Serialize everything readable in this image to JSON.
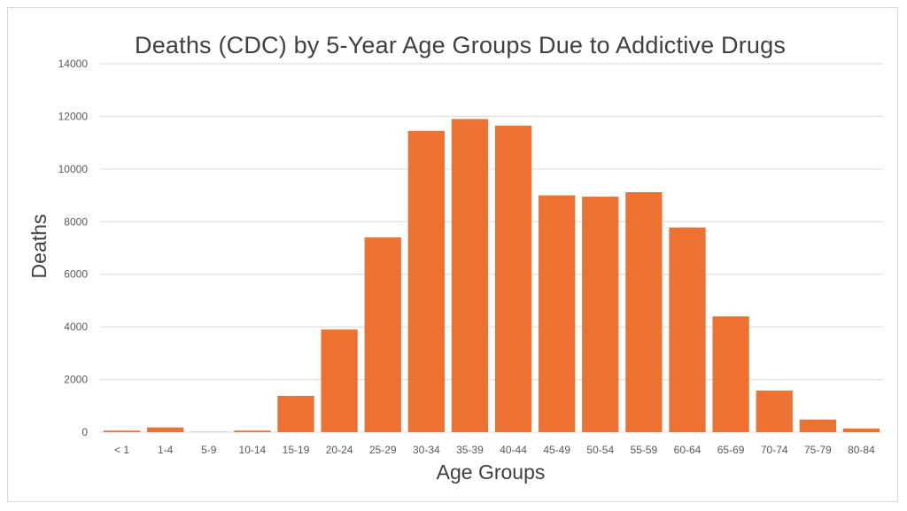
{
  "chart_data": {
    "type": "bar",
    "title": "Deaths (CDC) by 5-Year Age Groups Due to Addictive Drugs",
    "xlabel": "Age Groups",
    "ylabel": "Deaths",
    "categories": [
      "< 1",
      "1-4",
      "5-9",
      "10-14",
      "15-19",
      "20-24",
      "25-29",
      "30-34",
      "35-39",
      "40-44",
      "45-49",
      "50-54",
      "55-59",
      "60-64",
      "65-69",
      "70-74",
      "75-79",
      "80-84"
    ],
    "values": [
      60,
      180,
      10,
      60,
      1380,
      3900,
      7400,
      11450,
      11900,
      11650,
      9000,
      8950,
      9120,
      7780,
      4400,
      1580,
      480,
      140
    ],
    "ylim": [
      0,
      14000
    ],
    "yticks": [
      0,
      2000,
      4000,
      6000,
      8000,
      10000,
      12000,
      14000
    ],
    "grid": true,
    "legend": "none",
    "bar_color": "#ED7130",
    "grid_color": "#d9d9d9",
    "text_color": "#595959"
  }
}
